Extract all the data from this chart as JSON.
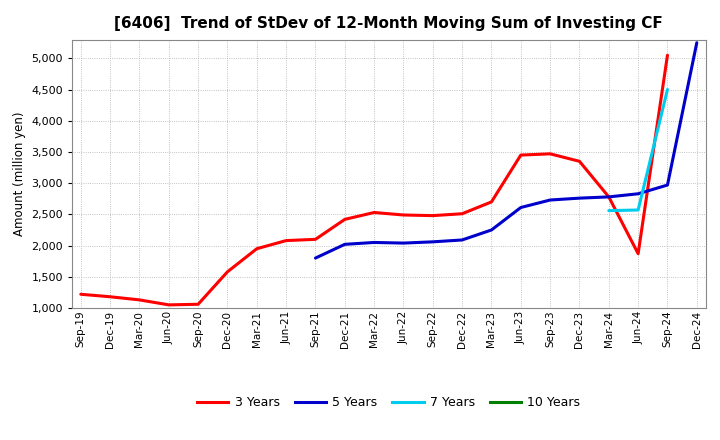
{
  "title": "[6406]  Trend of StDev of 12-Month Moving Sum of Investing CF",
  "ylabel": "Amount (million yen)",
  "background_color": "#ffffff",
  "grid_color": "#b0b0b0",
  "ylim": [
    1000,
    5300
  ],
  "yticks": [
    1000,
    1500,
    2000,
    2500,
    3000,
    3500,
    4000,
    4500,
    5000
  ],
  "xtick_labels": [
    "Sep-19",
    "Dec-19",
    "Mar-20",
    "Jun-20",
    "Sep-20",
    "Dec-20",
    "Mar-21",
    "Jun-21",
    "Sep-21",
    "Dec-21",
    "Mar-22",
    "Jun-22",
    "Sep-22",
    "Dec-22",
    "Mar-23",
    "Jun-23",
    "Sep-23",
    "Dec-23",
    "Mar-24",
    "Jun-24",
    "Sep-24",
    "Dec-24"
  ],
  "series": {
    "3 Years": {
      "color": "#ff0000",
      "data": [
        1220,
        1180,
        1130,
        1050,
        1060,
        1580,
        1950,
        2080,
        2100,
        2420,
        2530,
        2490,
        2480,
        2510,
        2700,
        3450,
        3470,
        3350,
        2780,
        1870,
        5050,
        null
      ]
    },
    "5 Years": {
      "color": "#0000cc",
      "data": [
        null,
        null,
        null,
        null,
        null,
        null,
        null,
        null,
        1800,
        2020,
        2050,
        2040,
        2060,
        2090,
        2250,
        2610,
        2730,
        2760,
        2780,
        2830,
        2970,
        5250
      ]
    },
    "7 Years": {
      "color": "#00ccee",
      "data": [
        null,
        null,
        null,
        null,
        null,
        null,
        null,
        null,
        null,
        null,
        null,
        null,
        null,
        null,
        null,
        null,
        null,
        null,
        2560,
        2570,
        4500,
        null
      ]
    },
    "10 Years": {
      "color": "#008000",
      "data": [
        null,
        null,
        null,
        null,
        null,
        null,
        null,
        null,
        null,
        null,
        null,
        null,
        null,
        null,
        null,
        null,
        null,
        null,
        null,
        null,
        null,
        null
      ]
    }
  },
  "legend_labels": [
    "3 Years",
    "5 Years",
    "7 Years",
    "10 Years"
  ],
  "legend_colors": [
    "#ff0000",
    "#0000cc",
    "#00ccee",
    "#008000"
  ]
}
